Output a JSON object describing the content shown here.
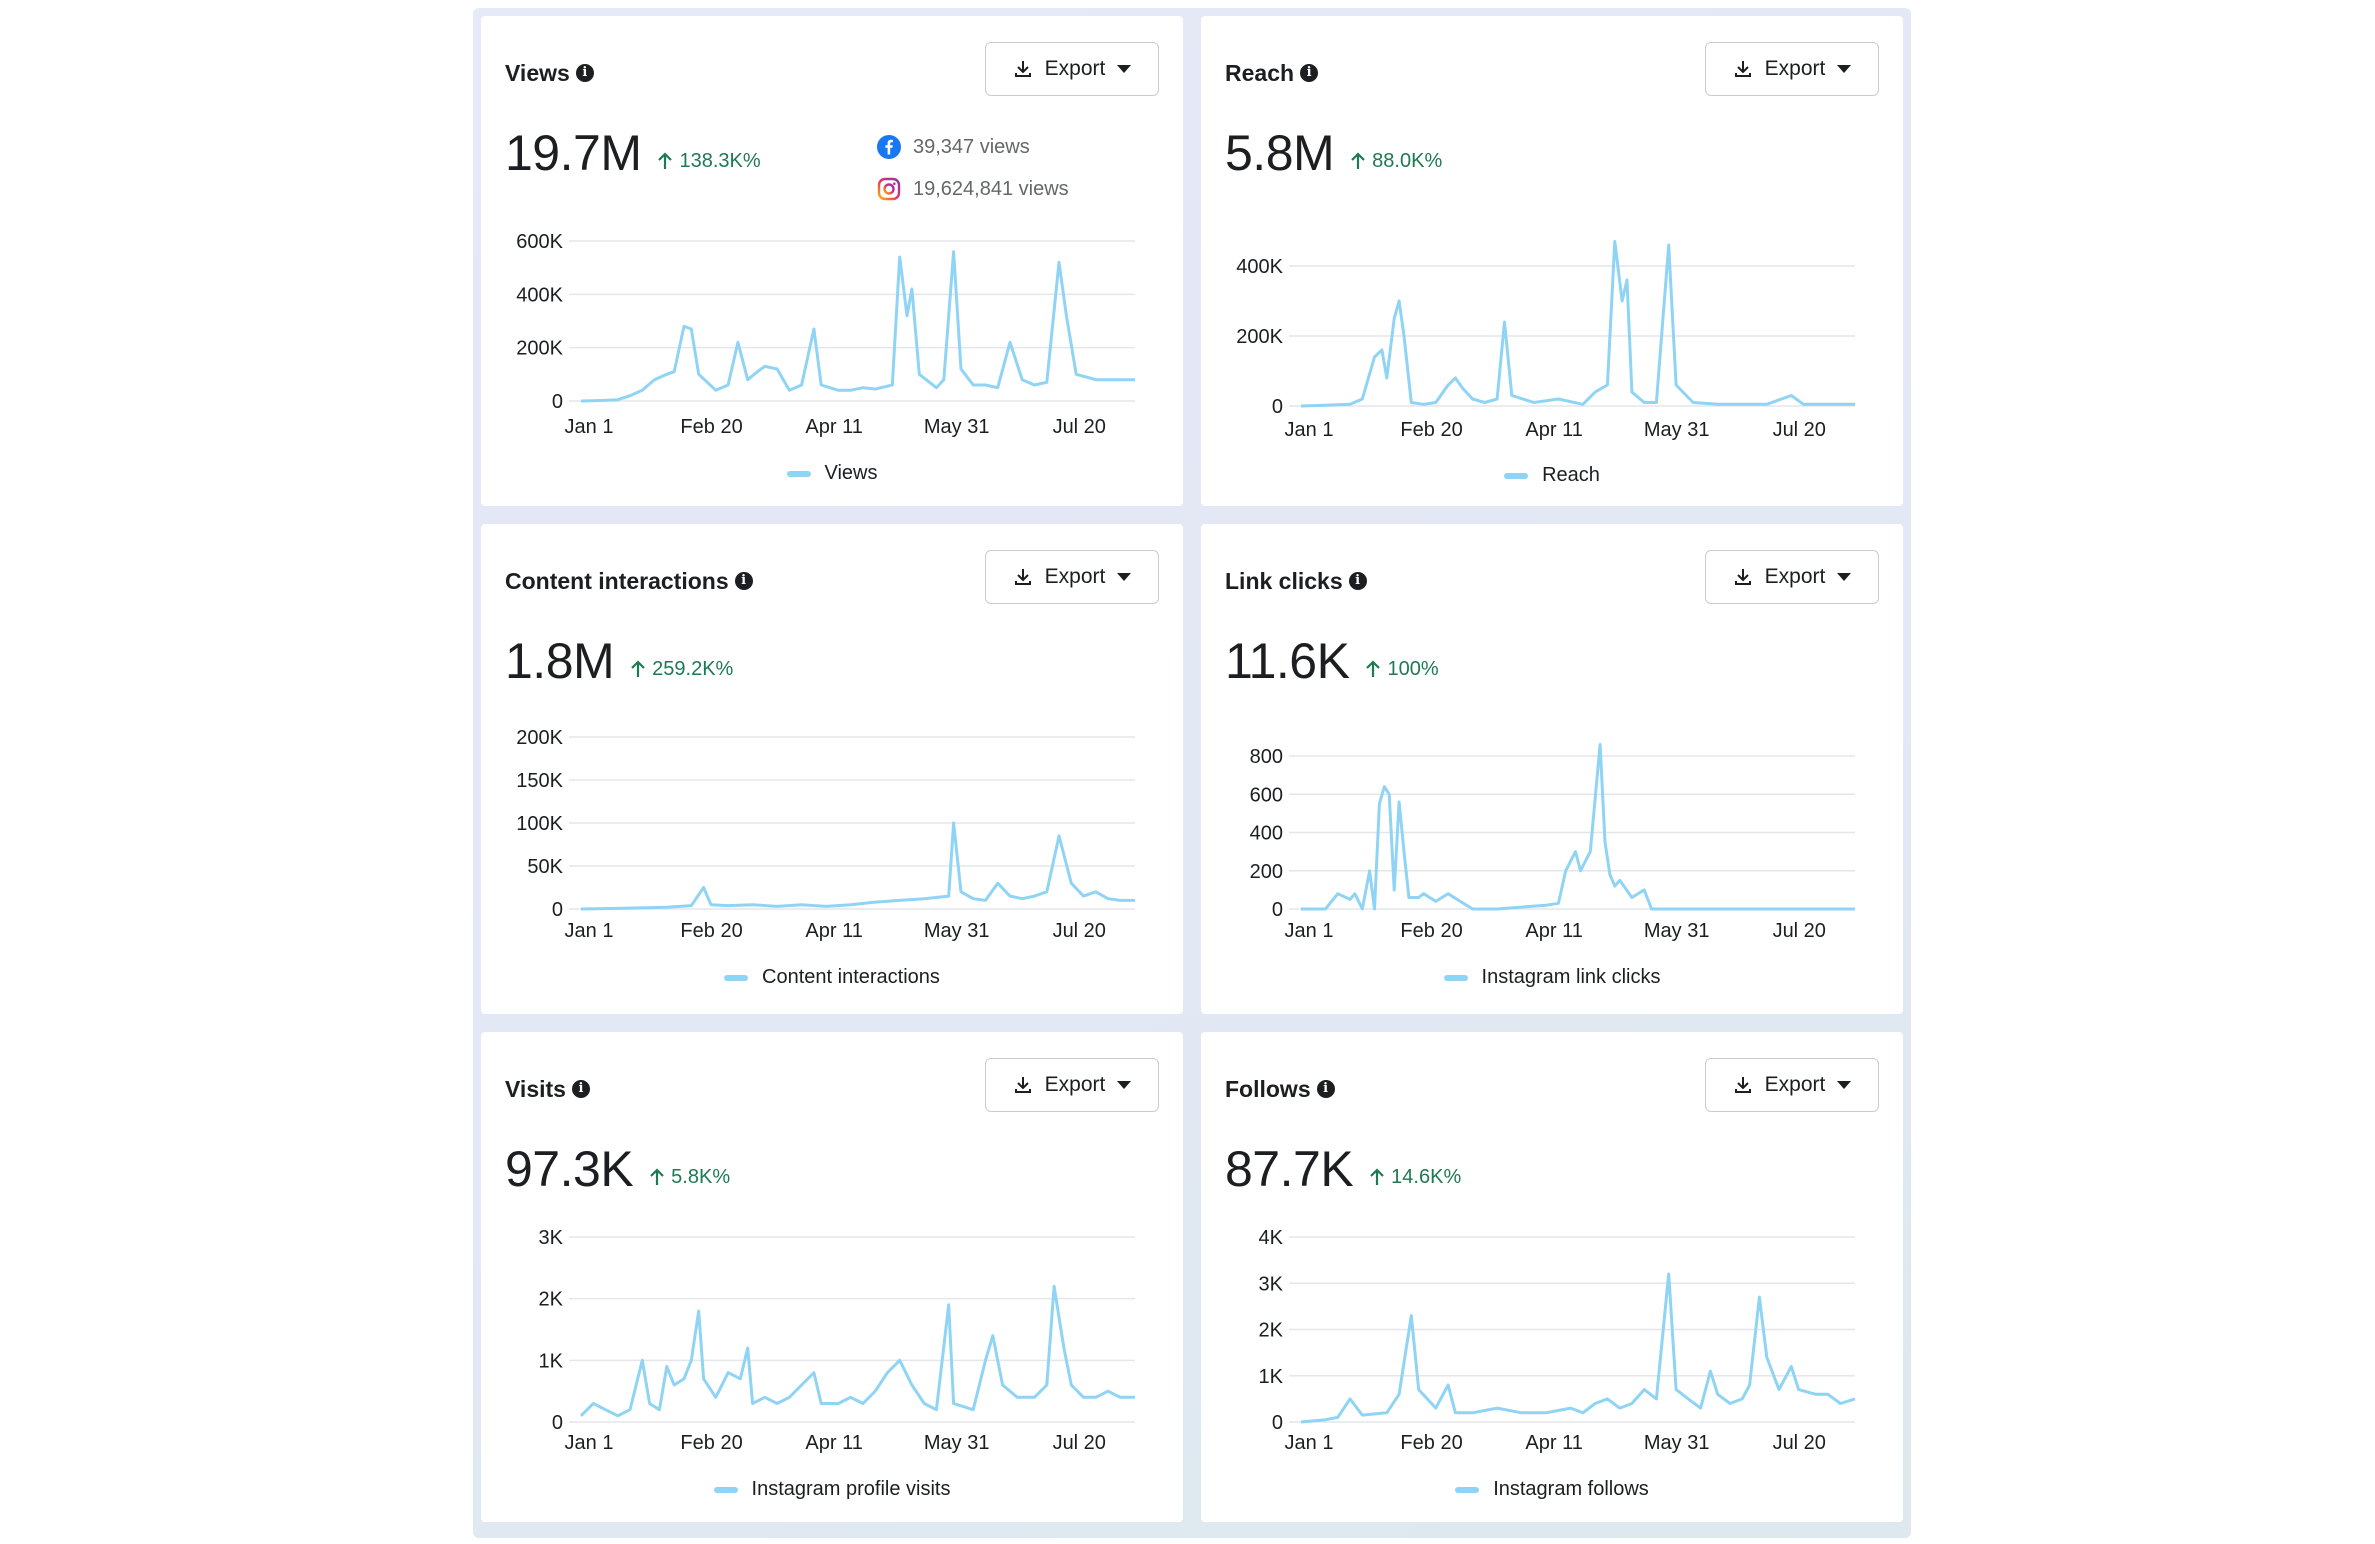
{
  "export_label": "Export",
  "x_ticks": [
    "Jan 1",
    "Feb 20",
    "Apr 11",
    "May 31",
    "Jul 20"
  ],
  "colors": {
    "series": "#8fd4f4",
    "positive": "#1e7a52",
    "facebook": "#1877f2",
    "instagram": "#d6249f"
  },
  "cards": [
    {
      "title": "Views",
      "value": "19.7M",
      "change": "138.3K%",
      "platforms": [
        {
          "icon": "facebook-icon",
          "text": "39,347 views"
        },
        {
          "icon": "instagram-icon",
          "text": "19,624,841 views"
        }
      ],
      "legend": "Views",
      "y_ticks": [
        "600K",
        "400K",
        "200K",
        "0"
      ]
    },
    {
      "title": "Reach",
      "value": "5.8M",
      "change": "88.0K%",
      "legend": "Reach",
      "y_ticks": [
        "400K",
        "200K",
        "0"
      ]
    },
    {
      "title": "Content interactions",
      "value": "1.8M",
      "change": "259.2K%",
      "legend": "Content interactions",
      "y_ticks": [
        "200K",
        "150K",
        "100K",
        "50K",
        "0"
      ]
    },
    {
      "title": "Link clicks",
      "value": "11.6K",
      "change": "100%",
      "legend": "Instagram link clicks",
      "y_ticks": [
        "800",
        "600",
        "400",
        "200",
        "0"
      ]
    },
    {
      "title": "Visits",
      "value": "97.3K",
      "change": "5.8K%",
      "legend": "Instagram profile visits",
      "y_ticks": [
        "3K",
        "2K",
        "1K",
        "0"
      ]
    },
    {
      "title": "Follows",
      "value": "87.7K",
      "change": "14.6K%",
      "legend": "Instagram follows",
      "y_ticks": [
        "4K",
        "3K",
        "2K",
        "1K",
        "0"
      ]
    }
  ],
  "chart_data": [
    {
      "type": "line",
      "title": "Views",
      "series_name": "Views",
      "x_range": [
        "Jan 1",
        "Aug 15"
      ],
      "ylim": [
        0,
        600000
      ],
      "x_ticks": [
        "Jan 1",
        "Feb 20",
        "Apr 11",
        "May 31",
        "Jul 20"
      ],
      "y_ticks": [
        0,
        200000,
        400000,
        600000
      ],
      "points": [
        [
          0,
          0
        ],
        [
          8,
          2000
        ],
        [
          15,
          5000
        ],
        [
          20,
          20000
        ],
        [
          25,
          40000
        ],
        [
          30,
          80000
        ],
        [
          35,
          100000
        ],
        [
          38,
          110000
        ],
        [
          42,
          280000
        ],
        [
          45,
          270000
        ],
        [
          48,
          100000
        ],
        [
          55,
          40000
        ],
        [
          60,
          60000
        ],
        [
          64,
          220000
        ],
        [
          68,
          80000
        ],
        [
          72,
          110000
        ],
        [
          75,
          130000
        ],
        [
          80,
          120000
        ],
        [
          85,
          40000
        ],
        [
          90,
          60000
        ],
        [
          95,
          270000
        ],
        [
          98,
          60000
        ],
        [
          105,
          40000
        ],
        [
          110,
          40000
        ],
        [
          115,
          50000
        ],
        [
          120,
          45000
        ],
        [
          127,
          60000
        ],
        [
          130,
          540000
        ],
        [
          133,
          320000
        ],
        [
          135,
          420000
        ],
        [
          138,
          100000
        ],
        [
          145,
          50000
        ],
        [
          148,
          80000
        ],
        [
          152,
          560000
        ],
        [
          155,
          120000
        ],
        [
          160,
          60000
        ],
        [
          165,
          60000
        ],
        [
          170,
          50000
        ],
        [
          175,
          220000
        ],
        [
          180,
          80000
        ],
        [
          185,
          60000
        ],
        [
          190,
          70000
        ],
        [
          195,
          520000
        ],
        [
          198,
          320000
        ],
        [
          202,
          100000
        ],
        [
          210,
          80000
        ],
        [
          220,
          80000
        ],
        [
          226,
          80000
        ]
      ],
      "grid": true,
      "legend": "bottom-center"
    },
    {
      "type": "line",
      "title": "Reach",
      "series_name": "Reach",
      "x_range": [
        "Jan 1",
        "Aug 15"
      ],
      "ylim": [
        0,
        400000
      ],
      "x_ticks": [
        "Jan 1",
        "Feb 20",
        "Apr 11",
        "May 31",
        "Jul 20"
      ],
      "y_ticks": [
        0,
        200000,
        400000
      ],
      "points": [
        [
          0,
          0
        ],
        [
          10,
          2000
        ],
        [
          20,
          5000
        ],
        [
          25,
          20000
        ],
        [
          30,
          140000
        ],
        [
          33,
          160000
        ],
        [
          35,
          80000
        ],
        [
          38,
          250000
        ],
        [
          40,
          300000
        ],
        [
          42,
          200000
        ],
        [
          45,
          10000
        ],
        [
          50,
          5000
        ],
        [
          55,
          10000
        ],
        [
          60,
          60000
        ],
        [
          63,
          80000
        ],
        [
          66,
          50000
        ],
        [
          70,
          20000
        ],
        [
          75,
          10000
        ],
        [
          80,
          20000
        ],
        [
          83,
          240000
        ],
        [
          86,
          30000
        ],
        [
          95,
          10000
        ],
        [
          105,
          20000
        ],
        [
          115,
          5000
        ],
        [
          120,
          40000
        ],
        [
          125,
          60000
        ],
        [
          128,
          470000
        ],
        [
          131,
          300000
        ],
        [
          133,
          360000
        ],
        [
          135,
          40000
        ],
        [
          140,
          10000
        ],
        [
          145,
          10000
        ],
        [
          150,
          460000
        ],
        [
          153,
          60000
        ],
        [
          160,
          10000
        ],
        [
          170,
          5000
        ],
        [
          180,
          5000
        ],
        [
          190,
          5000
        ],
        [
          200,
          30000
        ],
        [
          205,
          5000
        ],
        [
          215,
          5000
        ],
        [
          226,
          5000
        ]
      ],
      "grid": true,
      "legend": "bottom-center"
    },
    {
      "type": "line",
      "title": "Content interactions",
      "series_name": "Content interactions",
      "x_range": [
        "Jan 1",
        "Aug 15"
      ],
      "ylim": [
        0,
        200000
      ],
      "x_ticks": [
        "Jan 1",
        "Feb 20",
        "Apr 11",
        "May 31",
        "Jul 20"
      ],
      "y_ticks": [
        0,
        50000,
        100000,
        150000,
        200000
      ],
      "points": [
        [
          0,
          0
        ],
        [
          20,
          1000
        ],
        [
          35,
          2000
        ],
        [
          45,
          4000
        ],
        [
          50,
          25000
        ],
        [
          53,
          5000
        ],
        [
          60,
          4000
        ],
        [
          70,
          5000
        ],
        [
          80,
          3000
        ],
        [
          90,
          5000
        ],
        [
          100,
          3000
        ],
        [
          110,
          5000
        ],
        [
          120,
          8000
        ],
        [
          130,
          10000
        ],
        [
          140,
          12000
        ],
        [
          150,
          15000
        ],
        [
          152,
          100000
        ],
        [
          155,
          20000
        ],
        [
          160,
          12000
        ],
        [
          165,
          10000
        ],
        [
          170,
          30000
        ],
        [
          175,
          15000
        ],
        [
          180,
          12000
        ],
        [
          185,
          15000
        ],
        [
          190,
          20000
        ],
        [
          195,
          85000
        ],
        [
          200,
          30000
        ],
        [
          205,
          15000
        ],
        [
          210,
          20000
        ],
        [
          215,
          12000
        ],
        [
          220,
          10000
        ],
        [
          226,
          10000
        ]
      ],
      "grid": true,
      "legend": "bottom-center"
    },
    {
      "type": "line",
      "title": "Link clicks",
      "series_name": "Instagram link clicks",
      "x_range": [
        "Jan 1",
        "Aug 15"
      ],
      "ylim": [
        0,
        800
      ],
      "x_ticks": [
        "Jan 1",
        "Feb 20",
        "Apr 11",
        "May 31",
        "Jul 20"
      ],
      "y_ticks": [
        0,
        200,
        400,
        600,
        800
      ],
      "points": [
        [
          0,
          0
        ],
        [
          10,
          0
        ],
        [
          15,
          80
        ],
        [
          20,
          50
        ],
        [
          22,
          80
        ],
        [
          25,
          0
        ],
        [
          28,
          200
        ],
        [
          30,
          0
        ],
        [
          32,
          550
        ],
        [
          34,
          640
        ],
        [
          36,
          600
        ],
        [
          38,
          100
        ],
        [
          40,
          560
        ],
        [
          42,
          300
        ],
        [
          44,
          60
        ],
        [
          48,
          60
        ],
        [
          50,
          80
        ],
        [
          55,
          40
        ],
        [
          60,
          80
        ],
        [
          65,
          40
        ],
        [
          70,
          0
        ],
        [
          75,
          0
        ],
        [
          80,
          0
        ],
        [
          90,
          10
        ],
        [
          100,
          20
        ],
        [
          105,
          30
        ],
        [
          108,
          200
        ],
        [
          110,
          250
        ],
        [
          112,
          300
        ],
        [
          114,
          200
        ],
        [
          116,
          250
        ],
        [
          118,
          300
        ],
        [
          120,
          580
        ],
        [
          122,
          860
        ],
        [
          124,
          350
        ],
        [
          126,
          180
        ],
        [
          128,
          120
        ],
        [
          130,
          150
        ],
        [
          135,
          60
        ],
        [
          140,
          100
        ],
        [
          143,
          0
        ],
        [
          150,
          0
        ],
        [
          160,
          0
        ],
        [
          170,
          0
        ],
        [
          180,
          0
        ],
        [
          190,
          0
        ],
        [
          200,
          0
        ],
        [
          210,
          0
        ],
        [
          226,
          0
        ]
      ],
      "grid": true,
      "legend": "bottom-center"
    },
    {
      "type": "line",
      "title": "Visits",
      "series_name": "Instagram profile visits",
      "x_range": [
        "Jan 1",
        "Aug 15"
      ],
      "ylim": [
        0,
        3000
      ],
      "x_ticks": [
        "Jan 1",
        "Feb 20",
        "Apr 11",
        "May 31",
        "Jul 20"
      ],
      "y_ticks": [
        0,
        1000,
        2000,
        3000
      ],
      "points": [
        [
          0,
          100
        ],
        [
          5,
          300
        ],
        [
          10,
          200
        ],
        [
          15,
          100
        ],
        [
          20,
          200
        ],
        [
          25,
          1000
        ],
        [
          28,
          300
        ],
        [
          32,
          200
        ],
        [
          35,
          900
        ],
        [
          38,
          600
        ],
        [
          42,
          700
        ],
        [
          45,
          1000
        ],
        [
          48,
          1800
        ],
        [
          50,
          700
        ],
        [
          55,
          400
        ],
        [
          60,
          800
        ],
        [
          65,
          700
        ],
        [
          68,
          1200
        ],
        [
          70,
          300
        ],
        [
          75,
          400
        ],
        [
          80,
          300
        ],
        [
          85,
          400
        ],
        [
          90,
          600
        ],
        [
          95,
          800
        ],
        [
          98,
          300
        ],
        [
          105,
          300
        ],
        [
          110,
          400
        ],
        [
          115,
          300
        ],
        [
          120,
          500
        ],
        [
          125,
          800
        ],
        [
          130,
          1000
        ],
        [
          135,
          600
        ],
        [
          140,
          300
        ],
        [
          145,
          200
        ],
        [
          150,
          1900
        ],
        [
          152,
          300
        ],
        [
          160,
          200
        ],
        [
          165,
          1000
        ],
        [
          168,
          1400
        ],
        [
          172,
          600
        ],
        [
          178,
          400
        ],
        [
          185,
          400
        ],
        [
          190,
          600
        ],
        [
          193,
          2200
        ],
        [
          197,
          1200
        ],
        [
          200,
          600
        ],
        [
          205,
          400
        ],
        [
          210,
          400
        ],
        [
          215,
          500
        ],
        [
          220,
          400
        ],
        [
          226,
          400
        ]
      ],
      "grid": true,
      "legend": "bottom-center"
    },
    {
      "type": "line",
      "title": "Follows",
      "series_name": "Instagram follows",
      "x_range": [
        "Jan 1",
        "Aug 15"
      ],
      "ylim": [
        0,
        4000
      ],
      "x_ticks": [
        "Jan 1",
        "Feb 20",
        "Apr 11",
        "May 31",
        "Jul 20"
      ],
      "y_ticks": [
        0,
        1000,
        2000,
        3000,
        4000
      ],
      "points": [
        [
          0,
          0
        ],
        [
          10,
          50
        ],
        [
          15,
          100
        ],
        [
          20,
          500
        ],
        [
          25,
          150
        ],
        [
          35,
          200
        ],
        [
          40,
          600
        ],
        [
          45,
          2300
        ],
        [
          48,
          700
        ],
        [
          55,
          300
        ],
        [
          60,
          800
        ],
        [
          63,
          200
        ],
        [
          70,
          200
        ],
        [
          80,
          300
        ],
        [
          90,
          200
        ],
        [
          100,
          200
        ],
        [
          110,
          300
        ],
        [
          115,
          200
        ],
        [
          120,
          400
        ],
        [
          125,
          500
        ],
        [
          130,
          300
        ],
        [
          135,
          400
        ],
        [
          140,
          700
        ],
        [
          145,
          500
        ],
        [
          150,
          3200
        ],
        [
          153,
          700
        ],
        [
          158,
          500
        ],
        [
          163,
          300
        ],
        [
          167,
          1100
        ],
        [
          170,
          600
        ],
        [
          175,
          400
        ],
        [
          180,
          500
        ],
        [
          183,
          800
        ],
        [
          187,
          2700
        ],
        [
          190,
          1400
        ],
        [
          195,
          700
        ],
        [
          200,
          1200
        ],
        [
          203,
          700
        ],
        [
          210,
          600
        ],
        [
          215,
          600
        ],
        [
          220,
          400
        ],
        [
          226,
          500
        ]
      ],
      "grid": true,
      "legend": "bottom-center"
    }
  ]
}
